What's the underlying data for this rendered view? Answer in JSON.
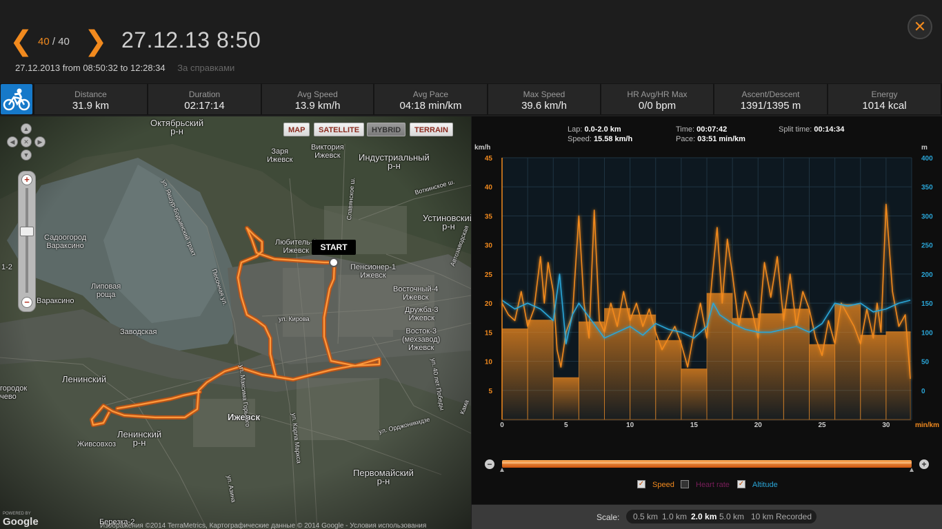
{
  "header": {
    "counter_current": "40",
    "counter_sep": " / ",
    "counter_total": "40",
    "title": "27.12.13 8:50",
    "date": "27.12.2013",
    "from_label": "from",
    "from_time": "08:50:32",
    "to_label": "to",
    "to_time": "12:28:34",
    "note": "За справками"
  },
  "stats": [
    {
      "label": "Distance",
      "value": "31.9 km"
    },
    {
      "label": "Duration",
      "value": "02:17:14"
    },
    {
      "label": "Avg Speed",
      "value": "13.9 km/h"
    },
    {
      "label": "Avg Pace",
      "value": "04:18 min/km"
    },
    {
      "label": "Max Speed",
      "value": "39.6 km/h"
    },
    {
      "label": "HR Avg/HR Max",
      "value": "0/0 bpm"
    },
    {
      "label": "Ascent/Descent",
      "value": "1391/1395 m"
    },
    {
      "label": "Energy",
      "value": "1014 kcal"
    }
  ],
  "map": {
    "buttons": [
      "MAP",
      "SATELLITE",
      "HYBRID",
      "TERRAIN"
    ],
    "start_label": "START",
    "labels": [
      "Октябрьский\nр-н",
      "Заря\nИжевск",
      "Виктория\nИжевск",
      "Индустриальный\nр-н",
      "Устиновский\nр-н",
      "Садоогород\nВараксино",
      "Любитель-1\nИжевск",
      "Пенсионер-1\nИжевск",
      "Липовая\nроща",
      "Вараксино",
      "Восточный-4\nИжевск",
      "Дружба-3\nИжевск",
      "Восток-3\n(мехзавод)\nИжевск",
      "Заводская",
      "Ленинский",
      "Ижевск",
      "Ленинский\nр-н",
      "Живсовхоз",
      "Первомайский\nр-н",
      "Березка-2",
      "городок\nчево",
      "1-2",
      "ул. Кирова",
      "ул. Максима Горького",
      "ул. Карла Маркса",
      "ул. Орджоникидзе",
      "Славянское ш.",
      "ул. 40 лет Победы",
      "Песочная ул.",
      "ул. Азина",
      "ул. Якшур-Бодьинский тракт",
      "Воткинское ш.",
      "Автозаводская",
      "Кама"
    ],
    "google": "Google",
    "powered_by": "POWERED BY",
    "copyright": "Изображения ©2014 TerraMetrics, Картографические данные © 2014 Google - Условия использования"
  },
  "lap_info": {
    "lap_label": "Lap:",
    "lap_value": "0.0-2.0 km",
    "speed_label": "Speed:",
    "speed_value": "15.58 km/h",
    "time_label": "Time:",
    "time_value": "00:07:42",
    "pace_label": "Pace:",
    "pace_value": "03:51 min/km",
    "split_label": "Split time:",
    "split_value": "00:14:34"
  },
  "legend": {
    "speed": "Speed",
    "heart_rate": "Heart rate",
    "altitude": "Altitude"
  },
  "scale": {
    "label": "Scale:",
    "options": [
      "0.5 km",
      "1.0 km",
      "2.0 km",
      "5.0 km",
      "10 km",
      "Recorded"
    ],
    "selected": "2.0 km"
  },
  "colors": {
    "accent": "#f28a1e",
    "speed": "#f28a1e",
    "altitude": "#2aa6d8",
    "heart_rate": "#7a1e5a",
    "sport_icon_bg": "#1679c9"
  },
  "chart_data": {
    "type": "line",
    "x_unit": "min/km",
    "xlim": [
      0,
      32
    ],
    "x_ticks": [
      0,
      5,
      10,
      15,
      20,
      25,
      30
    ],
    "left_axis": {
      "unit": "km/h",
      "ylim": [
        0,
        45
      ],
      "ticks": [
        5,
        10,
        15,
        20,
        25,
        30,
        35,
        40,
        45
      ]
    },
    "right_axis": {
      "unit": "m",
      "ylim": [
        -50,
        400
      ],
      "ticks": [
        0,
        50,
        100,
        150,
        200,
        250,
        300,
        350,
        400
      ]
    },
    "laps": [
      {
        "x0": 0,
        "x1": 2,
        "speed": 15.6
      },
      {
        "x0": 2,
        "x1": 4,
        "speed": 17.1
      },
      {
        "x0": 4,
        "x1": 6,
        "speed": 7.2
      },
      {
        "x0": 6,
        "x1": 8,
        "speed": 16.8
      },
      {
        "x0": 8,
        "x1": 10,
        "speed": 19.1
      },
      {
        "x0": 10,
        "x1": 12,
        "speed": 18.0
      },
      {
        "x0": 12,
        "x1": 14,
        "speed": 13.6
      },
      {
        "x0": 14,
        "x1": 16,
        "speed": 8.7
      },
      {
        "x0": 16,
        "x1": 18,
        "speed": 21.7
      },
      {
        "x0": 18,
        "x1": 20,
        "speed": 17.4
      },
      {
        "x0": 20,
        "x1": 22,
        "speed": 18.2
      },
      {
        "x0": 22,
        "x1": 24,
        "speed": 19.0
      },
      {
        "x0": 24,
        "x1": 26,
        "speed": 12.9
      },
      {
        "x0": 26,
        "x1": 28,
        "speed": 19.8
      },
      {
        "x0": 28,
        "x1": 30,
        "speed": 14.5
      },
      {
        "x0": 30,
        "x1": 31.9,
        "speed": 15.1
      }
    ],
    "series": [
      {
        "name": "Speed",
        "axis": "left",
        "x": [
          0,
          0.5,
          1,
          1.5,
          2,
          2.5,
          3,
          3.3,
          3.6,
          4,
          4.3,
          4.6,
          5,
          5.5,
          6,
          6.4,
          6.8,
          7.2,
          7.6,
          8,
          8.5,
          9,
          9.5,
          10,
          10.5,
          11,
          11.5,
          12,
          12.5,
          13,
          13.5,
          14,
          14.5,
          15,
          15.5,
          16,
          16.4,
          16.8,
          17.2,
          17.6,
          18,
          18.5,
          19,
          19.5,
          20,
          20.5,
          21,
          21.5,
          22,
          22.5,
          23,
          23.5,
          24,
          24.5,
          25,
          25.5,
          26,
          26.5,
          27,
          27.5,
          28,
          28.5,
          29,
          29.3,
          29.6,
          30,
          30.5,
          31,
          31.5,
          31.9
        ],
        "y": [
          20,
          18,
          17,
          22,
          16,
          19,
          28,
          20,
          27,
          22,
          12,
          9,
          15,
          18,
          35,
          20,
          14,
          36,
          17,
          15,
          20,
          16,
          22,
          17,
          20,
          16,
          19,
          15,
          12,
          14,
          16,
          13,
          9,
          15,
          20,
          14,
          24,
          33,
          20,
          31,
          25,
          16,
          22,
          19,
          14,
          27,
          21,
          28,
          17,
          25,
          16,
          22,
          19,
          14,
          11,
          17,
          13,
          20,
          18,
          16,
          13,
          19,
          14,
          20,
          15,
          37,
          22,
          16,
          18,
          7
        ],
        "color": "#f28a1e"
      },
      {
        "name": "Altitude",
        "axis": "right",
        "x": [
          0,
          1,
          2,
          3,
          4,
          4.5,
          5,
          5.5,
          6,
          7,
          8,
          9,
          10,
          11,
          12,
          13,
          14,
          15,
          16,
          16.5,
          17,
          18,
          19,
          20,
          21,
          22,
          23,
          24,
          25,
          26,
          27,
          28,
          29,
          30,
          31,
          31.9
        ],
        "y": [
          155,
          140,
          150,
          140,
          120,
          200,
          80,
          130,
          150,
          120,
          90,
          100,
          110,
          95,
          115,
          105,
          100,
          90,
          110,
          150,
          130,
          115,
          105,
          100,
          100,
          105,
          110,
          100,
          115,
          150,
          145,
          150,
          135,
          140,
          150,
          155
        ],
        "color": "#2aa6d8"
      }
    ]
  }
}
